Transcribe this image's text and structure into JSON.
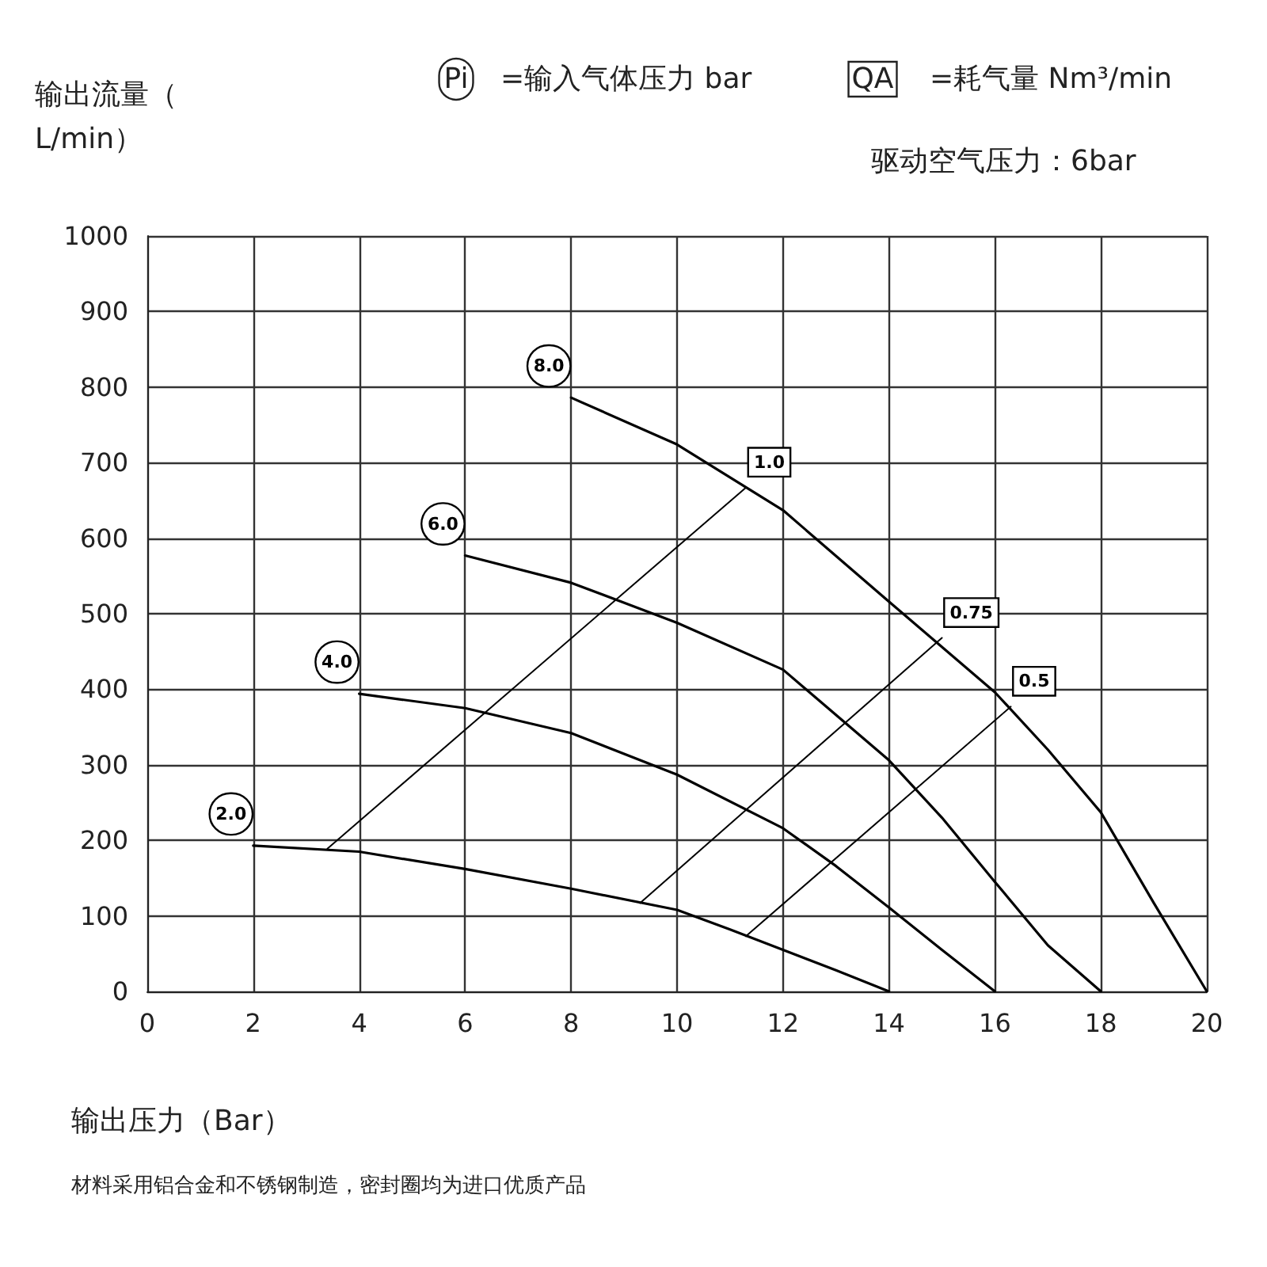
{
  "chart_data": {
    "type": "line",
    "xlabel": "输出压力（Bar）",
    "ylabel": "输出流量（L/min）",
    "annotations": [
      "Pi",
      "=输入气体压力 bar",
      "QA",
      "=耗气量 Nm³/min",
      "驱动空气压力：6bar",
      "材料采用铝合金和不锈钢制造，密封圈均为进口优质产品"
    ],
    "xlim": [
      0,
      20
    ],
    "xticks": [
      0,
      2,
      4,
      6,
      8,
      10,
      12,
      14,
      16,
      18,
      20
    ],
    "ylim": [
      0,
      1000
    ],
    "yticks": [
      0,
      100,
      200,
      300,
      400,
      500,
      600,
      700,
      800,
      900,
      1000
    ],
    "grid": true,
    "marker": "none",
    "line_style": "solid",
    "legend": false,
    "series": [
      {
        "name": "2.0",
        "color": "#000000",
        "x": [
          2,
          4,
          6,
          8,
          10,
          11,
          12,
          13,
          14
        ],
        "values": [
          193,
          185,
          162,
          136,
          108,
          82,
          55,
          28,
          0
        ]
      },
      {
        "name": "4.0",
        "color": "#000000",
        "x": [
          4,
          6,
          8,
          10,
          12,
          13,
          14,
          15,
          16
        ],
        "values": [
          394,
          375,
          342,
          287,
          216,
          166,
          111,
          55,
          0
        ]
      },
      {
        "name": "6.0",
        "color": "#000000",
        "x": [
          6,
          8,
          10,
          12,
          14,
          15,
          16,
          17,
          18
        ],
        "values": [
          577,
          541,
          488,
          426,
          306,
          230,
          145,
          61,
          0
        ]
      },
      {
        "name": "8.0",
        "color": "#000000",
        "x": [
          8,
          10,
          12,
          14,
          16,
          17,
          18,
          19,
          20
        ],
        "values": [
          786,
          724,
          637,
          516,
          396,
          320,
          237,
          117,
          0
        ]
      },
      {
        "name": "1.0",
        "color": "#000000",
        "x": [
          3.4,
          11.3
        ],
        "values": [
          189,
          667
        ]
      },
      {
        "name": "0.75",
        "color": "#000000",
        "x": [
          9.3,
          15.0
        ],
        "values": [
          117,
          468
        ]
      },
      {
        "name": "0.5",
        "color": "#000000",
        "x": [
          11.3,
          16.3
        ],
        "values": [
          73,
          377
        ]
      }
    ]
  }
}
